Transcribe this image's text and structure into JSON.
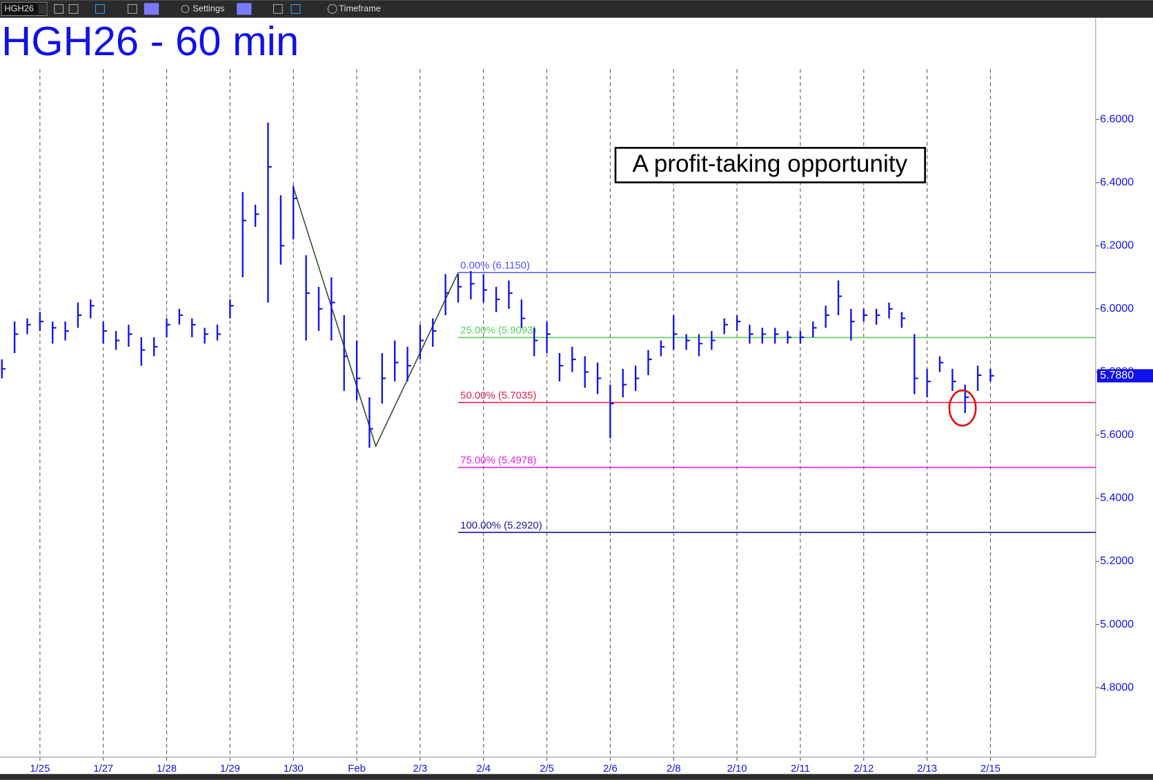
{
  "toolbar": {
    "symbol": "HGH26",
    "settings": "Settings",
    "timeframe": "Timeframe"
  },
  "chart_data": {
    "type": "ohlc",
    "title": "HGH26 - 60 min",
    "annotation": "A profit-taking opportunity",
    "color": "#1010e8",
    "xlim": [
      -0.63,
      16.66
    ],
    "ylim": [
      4.58,
      6.92
    ],
    "xticks": [
      {
        "value": 0,
        "label": "1/25"
      },
      {
        "value": 1,
        "label": "1/27"
      },
      {
        "value": 2,
        "label": "1/28"
      },
      {
        "value": 3,
        "label": "1/29"
      },
      {
        "value": 4,
        "label": "1/30"
      },
      {
        "value": 5,
        "label": "Feb"
      },
      {
        "value": 6,
        "label": "2/3"
      },
      {
        "value": 7,
        "label": "2/4"
      },
      {
        "value": 8,
        "label": "2/5"
      },
      {
        "value": 9,
        "label": "2/6"
      },
      {
        "value": 10,
        "label": "2/8"
      },
      {
        "value": 11,
        "label": "2/10"
      },
      {
        "value": 12,
        "label": "2/11"
      },
      {
        "value": 13,
        "label": "2/12"
      },
      {
        "value": 14,
        "label": "2/13"
      },
      {
        "value": 15,
        "label": "2/15"
      }
    ],
    "yticks": [
      {
        "value": 6.6,
        "label": "6.6000"
      },
      {
        "value": 6.4,
        "label": "6.4000"
      },
      {
        "value": 6.2,
        "label": "6.2000"
      },
      {
        "value": 6.0,
        "label": "6.0000"
      },
      {
        "value": 5.8,
        "label": "5.8000"
      },
      {
        "value": 5.6,
        "label": "5.6000"
      },
      {
        "value": 5.4,
        "label": "5.4000"
      },
      {
        "value": 5.2,
        "label": "5.2000"
      },
      {
        "value": 5.0,
        "label": "5.0000"
      },
      {
        "value": 4.8,
        "label": "4.8000"
      }
    ],
    "last_price": {
      "value": 5.788,
      "label": "5.7880"
    },
    "x": [
      -0.6,
      -0.4,
      -0.2,
      0.0,
      0.2,
      0.4,
      0.6,
      0.8,
      1.0,
      1.2,
      1.4,
      1.6,
      1.8,
      2.0,
      2.2,
      2.4,
      2.6,
      2.8,
      3.0,
      3.2,
      3.4,
      3.6,
      3.8,
      4.0,
      4.2,
      4.4,
      4.6,
      4.8,
      5.0,
      5.2,
      5.4,
      5.6,
      5.8,
      6.0,
      6.2,
      6.4,
      6.6,
      6.8,
      7.0,
      7.2,
      7.4,
      7.6,
      7.8,
      8.0,
      8.2,
      8.4,
      8.6,
      8.8,
      9.0,
      9.2,
      9.4,
      9.6,
      9.8,
      10.0,
      10.2,
      10.4,
      10.6,
      10.8,
      11.0,
      11.2,
      11.4,
      11.6,
      11.8,
      12.0,
      12.2,
      12.4,
      12.6,
      12.8,
      13.0,
      13.2,
      13.4,
      13.6,
      13.8,
      14.0,
      14.2,
      14.4,
      14.6,
      14.8,
      15.0
    ],
    "high": [
      5.84,
      5.96,
      5.97,
      5.99,
      5.96,
      5.96,
      6.02,
      6.03,
      5.96,
      5.93,
      5.95,
      5.91,
      5.91,
      5.97,
      6.0,
      5.97,
      5.94,
      5.95,
      6.03,
      6.37,
      6.33,
      6.59,
      6.36,
      6.39,
      6.17,
      6.07,
      6.1,
      5.98,
      5.9,
      5.72,
      5.86,
      5.9,
      5.88,
      5.95,
      5.97,
      6.11,
      6.11,
      6.12,
      6.11,
      6.07,
      6.09,
      6.03,
      5.94,
      5.96,
      5.86,
      5.88,
      5.85,
      5.83,
      5.76,
      5.81,
      5.82,
      5.87,
      5.9,
      5.98,
      5.92,
      5.92,
      5.93,
      5.97,
      5.98,
      5.95,
      5.94,
      5.94,
      5.93,
      5.93,
      5.96,
      6.01,
      6.09,
      6.0,
      6.0,
      6.0,
      6.02,
      5.99,
      5.92,
      5.81,
      5.85,
      5.81,
      5.76,
      5.82,
      5.81
    ],
    "low": [
      5.78,
      5.86,
      5.92,
      5.93,
      5.89,
      5.9,
      5.94,
      5.97,
      5.89,
      5.87,
      5.88,
      5.82,
      5.85,
      5.91,
      5.95,
      5.91,
      5.89,
      5.9,
      5.97,
      6.1,
      6.26,
      6.02,
      6.14,
      6.22,
      5.9,
      5.93,
      5.9,
      5.74,
      5.71,
      5.56,
      5.7,
      5.77,
      5.77,
      5.84,
      5.88,
      5.98,
      6.02,
      6.03,
      6.02,
      5.99,
      6.0,
      5.94,
      5.85,
      5.86,
      5.77,
      5.8,
      5.75,
      5.73,
      5.59,
      5.72,
      5.74,
      5.79,
      5.85,
      5.87,
      5.87,
      5.85,
      5.87,
      5.92,
      5.93,
      5.89,
      5.89,
      5.89,
      5.89,
      5.89,
      5.91,
      5.94,
      5.98,
      5.9,
      5.96,
      5.95,
      5.97,
      5.94,
      5.73,
      5.72,
      5.8,
      5.74,
      5.67,
      5.74,
      5.77
    ],
    "close": [
      5.81,
      5.92,
      5.95,
      5.96,
      5.94,
      5.93,
      5.98,
      6.01,
      5.93,
      5.9,
      5.92,
      5.87,
      5.88,
      5.95,
      5.98,
      5.95,
      5.92,
      5.92,
      6.01,
      6.28,
      6.3,
      6.45,
      6.2,
      6.35,
      6.05,
      6.0,
      6.02,
      5.85,
      5.78,
      5.62,
      5.78,
      5.83,
      5.82,
      5.9,
      5.93,
      6.05,
      6.07,
      6.08,
      6.06,
      6.03,
      6.05,
      5.97,
      5.9,
      5.92,
      5.82,
      5.84,
      5.8,
      5.78,
      5.7,
      5.76,
      5.78,
      5.84,
      5.88,
      5.92,
      5.9,
      5.89,
      5.9,
      5.95,
      5.96,
      5.92,
      5.92,
      5.92,
      5.91,
      5.91,
      5.94,
      5.98,
      6.04,
      5.96,
      5.98,
      5.98,
      6.0,
      5.97,
      5.78,
      5.77,
      5.83,
      5.77,
      5.72,
      5.79,
      5.788
    ],
    "swing": {
      "x": [
        4.0,
        5.3,
        6.6
      ],
      "y": [
        6.385,
        5.565,
        6.115
      ]
    },
    "fib_start": 6.6,
    "levels": [
      {
        "label": "0.00% (6.1150)",
        "value": 6.115,
        "color": "#5050ff"
      },
      {
        "label": "25.00% (5.9093)",
        "value": 5.9093,
        "color": "#55d055"
      },
      {
        "label": "50.00% (5.7035)",
        "value": 5.7035,
        "color": "#e0204a"
      },
      {
        "label": "75.00% (5.4978)",
        "value": 5.4978,
        "color": "#e020e0"
      },
      {
        "label": "100.00% (5.2920)",
        "value": 5.292,
        "color": "#15159a"
      }
    ]
  }
}
